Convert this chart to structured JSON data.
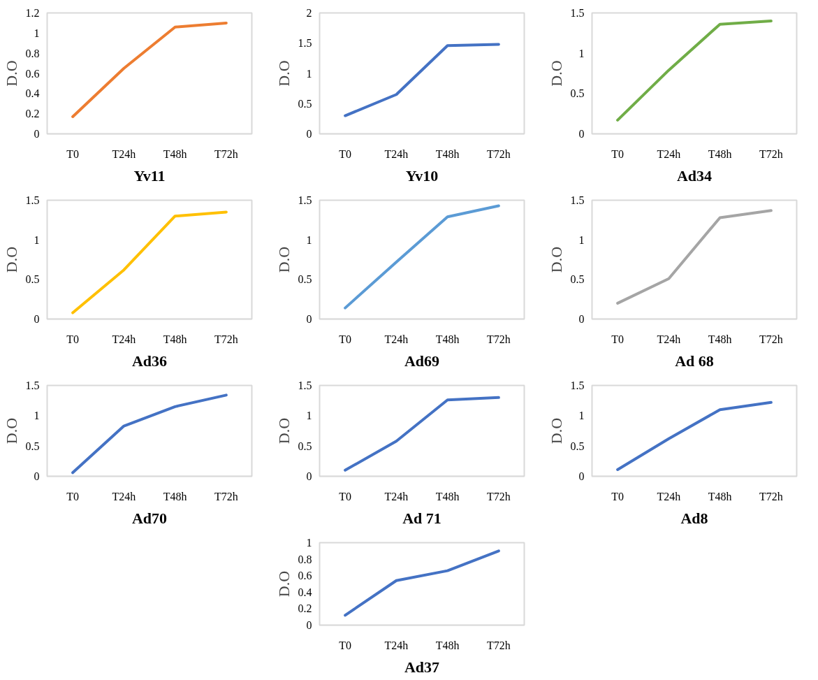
{
  "chart_data": [
    {
      "type": "line",
      "title": "Yv11",
      "ylabel": "D.O",
      "categories": [
        "T0",
        "T24h",
        "T48h",
        "T72h"
      ],
      "series": [
        {
          "color": "#ed7d31",
          "values": [
            0.17,
            0.65,
            1.06,
            1.1
          ]
        }
      ],
      "ylim": [
        0,
        1.2
      ],
      "yticks": [
        0,
        0.2,
        0.4,
        0.6,
        0.8,
        1,
        1.2
      ],
      "grid": false,
      "marker": "none"
    },
    {
      "type": "line",
      "title": "Yv10",
      "ylabel": "D.O",
      "categories": [
        "T0",
        "T24h",
        "T48h",
        "T72h"
      ],
      "series": [
        {
          "color": "#4472c4",
          "values": [
            0.3,
            0.65,
            1.46,
            1.48
          ]
        }
      ],
      "ylim": [
        0,
        2
      ],
      "yticks": [
        0,
        0.5,
        1,
        1.5,
        2
      ],
      "grid": false,
      "marker": "none"
    },
    {
      "type": "line",
      "title": "Ad34",
      "ylabel": "D.O",
      "categories": [
        "T0",
        "T24h",
        "T48h",
        "T72h"
      ],
      "series": [
        {
          "color": "#70ad47",
          "values": [
            0.17,
            0.79,
            1.36,
            1.4
          ]
        }
      ],
      "ylim": [
        0,
        1.5
      ],
      "yticks": [
        0,
        0.5,
        1,
        1.5
      ],
      "grid": false,
      "marker": "none"
    },
    {
      "type": "line",
      "title": "Ad36",
      "ylabel": "D.O",
      "categories": [
        "T0",
        "T24h",
        "T48h",
        "T72h"
      ],
      "series": [
        {
          "color": "#ffc000",
          "values": [
            0.08,
            0.62,
            1.3,
            1.35
          ]
        }
      ],
      "ylim": [
        0,
        1.5
      ],
      "yticks": [
        0,
        0.5,
        1,
        1.5
      ],
      "grid": false,
      "marker": "none"
    },
    {
      "type": "line",
      "title": "Ad69",
      "ylabel": "D.O",
      "categories": [
        "T0",
        "T24h",
        "T48h",
        "T72h"
      ],
      "series": [
        {
          "color": "#5b9bd5",
          "values": [
            0.14,
            0.72,
            1.29,
            1.43
          ]
        }
      ],
      "ylim": [
        0,
        1.5
      ],
      "yticks": [
        0,
        0.5,
        1,
        1.5
      ],
      "grid": false,
      "marker": "none"
    },
    {
      "type": "line",
      "title": "Ad 68",
      "ylabel": "D.O",
      "categories": [
        "T0",
        "T24h",
        "T48h",
        "T72h"
      ],
      "series": [
        {
          "color": "#a5a5a5",
          "values": [
            0.2,
            0.51,
            1.28,
            1.37
          ]
        }
      ],
      "ylim": [
        0,
        1.5
      ],
      "yticks": [
        0,
        0.5,
        1,
        1.5
      ],
      "grid": false,
      "marker": "none"
    },
    {
      "type": "line",
      "title": "Ad70",
      "ylabel": "D.O",
      "categories": [
        "T0",
        "T24h",
        "T48h",
        "T72h"
      ],
      "series": [
        {
          "color": "#4472c4",
          "values": [
            0.06,
            0.83,
            1.15,
            1.34
          ]
        }
      ],
      "ylim": [
        0,
        1.5
      ],
      "yticks": [
        0,
        0.5,
        1,
        1.5
      ],
      "grid": false,
      "marker": "none"
    },
    {
      "type": "line",
      "title": "Ad 71",
      "ylabel": "D.O",
      "categories": [
        "T0",
        "T24h",
        "T48h",
        "T72h"
      ],
      "series": [
        {
          "color": "#4472c4",
          "values": [
            0.1,
            0.58,
            1.26,
            1.3
          ]
        }
      ],
      "ylim": [
        0,
        1.5
      ],
      "yticks": [
        0,
        0.5,
        1,
        1.5
      ],
      "grid": false,
      "marker": "none"
    },
    {
      "type": "line",
      "title": "Ad8",
      "ylabel": "D.O",
      "categories": [
        "T0",
        "T24h",
        "T48h",
        "T72h"
      ],
      "series": [
        {
          "color": "#4472c4",
          "values": [
            0.11,
            0.62,
            1.1,
            1.22
          ]
        }
      ],
      "ylim": [
        0,
        1.5
      ],
      "yticks": [
        0,
        0.5,
        1,
        1.5
      ],
      "grid": false,
      "marker": "none"
    },
    {
      "type": "line",
      "title": "Ad37",
      "ylabel": "D.O",
      "categories": [
        "T0",
        "T24h",
        "T48h",
        "T72h"
      ],
      "series": [
        {
          "color": "#4472c4",
          "values": [
            0.12,
            0.54,
            0.66,
            0.9
          ]
        }
      ],
      "ylim": [
        0,
        1
      ],
      "yticks": [
        0,
        0.2,
        0.4,
        0.6,
        0.8,
        1
      ],
      "grid": false,
      "marker": "none"
    }
  ]
}
